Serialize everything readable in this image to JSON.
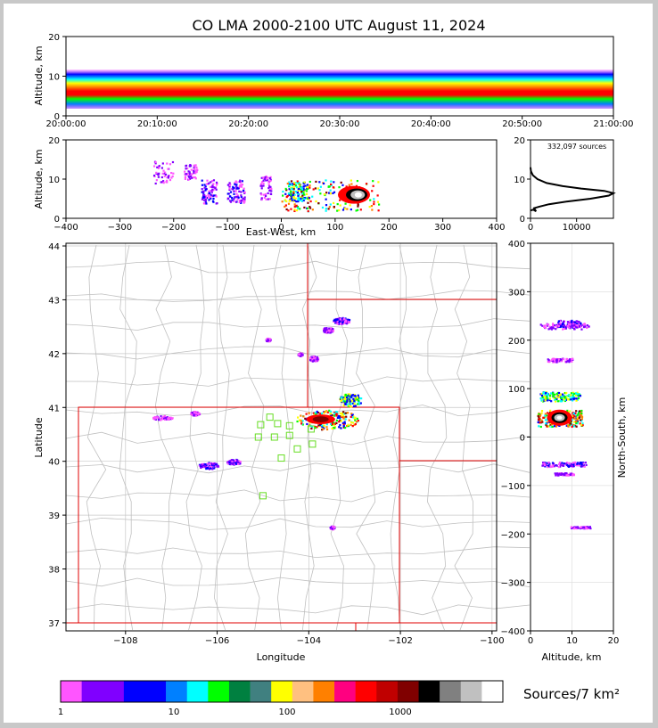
{
  "chart_data": {
    "type": "heatmap",
    "title": "CO LMA 2000-2100 UTC August 11, 2024",
    "source_count": "332,097 sources",
    "panels": {
      "time_altitude": {
        "ylabel": "Altitude, km",
        "ylim": [
          0,
          20
        ],
        "yticks": [
          "0",
          "10",
          "20"
        ],
        "xticks": [
          "20:00:00",
          "20:10:00",
          "20:20:00",
          "20:30:00",
          "20:40:00",
          "20:50:00",
          "21:00:00"
        ],
        "xlim_minutes": [
          0,
          60
        ],
        "band_center_km": 6,
        "band_halfwidth_km": 5
      },
      "ew_altitude": {
        "xlabel": "East-West, km",
        "ylabel": "Altitude, km",
        "xlim": [
          -400,
          400
        ],
        "ylim": [
          0,
          20
        ],
        "xticks": [
          "−400",
          "−300",
          "−200",
          "−100",
          "0",
          "100",
          "200",
          "300",
          "400"
        ],
        "yticks": [
          "0",
          "10",
          "20"
        ],
        "clusters": [
          {
            "x": -220,
            "alt": 12,
            "w": 18,
            "h": 6,
            "level": 1
          },
          {
            "x": -170,
            "alt": 12,
            "w": 12,
            "h": 4,
            "level": 1
          },
          {
            "x": -135,
            "alt": 7,
            "w": 14,
            "h": 6,
            "level": 2
          },
          {
            "x": -85,
            "alt": 7,
            "w": 16,
            "h": 6,
            "level": 2
          },
          {
            "x": -30,
            "alt": 8,
            "w": 10,
            "h": 6,
            "level": 1
          },
          {
            "x": 30,
            "alt": 7,
            "w": 18,
            "h": 5,
            "level": 3
          },
          {
            "x": 90,
            "alt": 6,
            "w": 90,
            "h": 8,
            "level": 5
          }
        ]
      },
      "altitude_histogram": {
        "xticks": [
          "0",
          "10000"
        ],
        "xlim": [
          0,
          18000
        ],
        "yticks": [
          "0",
          "10",
          "20"
        ],
        "ylim": [
          0,
          20
        ],
        "profile": [
          [
            0,
            2
          ],
          [
            600,
            2.2
          ],
          [
            1200,
            1.8
          ],
          [
            800,
            2.6
          ],
          [
            2000,
            3
          ],
          [
            4000,
            3.6
          ],
          [
            8000,
            4.3
          ],
          [
            13000,
            5
          ],
          [
            17000,
            5.8
          ],
          [
            18000,
            6.4
          ],
          [
            16000,
            7
          ],
          [
            11000,
            7.6
          ],
          [
            7000,
            8.2
          ],
          [
            3500,
            9
          ],
          [
            1500,
            10
          ],
          [
            500,
            11
          ],
          [
            100,
            12
          ],
          [
            0,
            13
          ]
        ]
      },
      "map": {
        "xlabel": "Longitude",
        "ylabel": "Latitude",
        "xlim": [
          -109.3,
          -99.9
        ],
        "ylim": [
          36.85,
          44.05
        ],
        "xticks": [
          "−108",
          "−106",
          "−104",
          "−102",
          "−100"
        ],
        "yticks": [
          "37",
          "38",
          "39",
          "40",
          "41",
          "42",
          "43",
          "44"
        ],
        "stations": [
          [
            -104.85,
            40.82
          ],
          [
            -105.05,
            40.68
          ],
          [
            -104.68,
            40.7
          ],
          [
            -104.42,
            40.66
          ],
          [
            -104.75,
            40.45
          ],
          [
            -105.1,
            40.45
          ],
          [
            -104.42,
            40.48
          ],
          [
            -104.25,
            40.23
          ],
          [
            -104.6,
            40.06
          ],
          [
            -103.95,
            40.6
          ],
          [
            -103.92,
            40.32
          ],
          [
            -105.0,
            39.36
          ]
        ],
        "clusters": [
          {
            "lon": -103.1,
            "lat": 41.15,
            "rx": 0.25,
            "ry": 0.12,
            "level": 3
          },
          {
            "lon": -103.6,
            "lat": 40.78,
            "rx": 0.7,
            "ry": 0.18,
            "level": 5
          },
          {
            "lon": -103.3,
            "lat": 42.62,
            "rx": 0.18,
            "ry": 0.06,
            "level": 2
          },
          {
            "lon": -103.6,
            "lat": 42.45,
            "rx": 0.12,
            "ry": 0.05,
            "level": 1
          },
          {
            "lon": -103.9,
            "lat": 41.92,
            "rx": 0.1,
            "ry": 0.05,
            "level": 1
          },
          {
            "lon": -107.2,
            "lat": 40.82,
            "rx": 0.22,
            "ry": 0.04,
            "level": 1
          },
          {
            "lon": -106.5,
            "lat": 40.9,
            "rx": 0.1,
            "ry": 0.04,
            "level": 1
          },
          {
            "lon": -106.2,
            "lat": 39.93,
            "rx": 0.22,
            "ry": 0.06,
            "level": 2
          },
          {
            "lon": -105.65,
            "lat": 40.0,
            "rx": 0.15,
            "ry": 0.05,
            "level": 2
          },
          {
            "lon": -103.5,
            "lat": 38.78,
            "rx": 0.05,
            "ry": 0.03,
            "level": 1
          },
          {
            "lon": -104.2,
            "lat": 42.0,
            "rx": 0.05,
            "ry": 0.03,
            "level": 1
          },
          {
            "lon": -104.9,
            "lat": 42.27,
            "rx": 0.05,
            "ry": 0.03,
            "level": 1
          }
        ]
      },
      "ns_altitude": {
        "xlabel": "Altitude, km",
        "ylabel": "North-South, km",
        "xlim": [
          0,
          20
        ],
        "ylim": [
          -400,
          400
        ],
        "xticks": [
          "0",
          "10",
          "20"
        ],
        "yticks": [
          "−400",
          "−300",
          "−200",
          "−100",
          "0",
          "100",
          "200",
          "300",
          "400"
        ],
        "clusters": [
          {
            "alt": 9,
            "ns": 235,
            "w": 5,
            "h": 12,
            "level": 2
          },
          {
            "alt": 8,
            "ns": 230,
            "w": 10,
            "h": 10,
            "level": 1
          },
          {
            "alt": 7,
            "ns": 160,
            "w": 5,
            "h": 6,
            "level": 1
          },
          {
            "alt": 7,
            "ns": 85,
            "w": 8,
            "h": 16,
            "level": 3
          },
          {
            "alt": 7,
            "ns": 40,
            "w": 9,
            "h": 28,
            "level": 5
          },
          {
            "alt": 8,
            "ns": -55,
            "w": 9,
            "h": 8,
            "level": 2
          },
          {
            "alt": 8,
            "ns": -75,
            "w": 4,
            "h": 4,
            "level": 1
          },
          {
            "alt": 12,
            "ns": -185,
            "w": 4,
            "h": 3,
            "level": 1
          }
        ]
      }
    },
    "colorbar": {
      "label": "Sources/7 km²",
      "ticks": [
        "1",
        "10",
        "100",
        "1000"
      ],
      "colors": [
        "#ff55ff",
        "#8000ff",
        "#8000ff",
        "#0000ff",
        "#0000ff",
        "#0080ff",
        "#00ffff",
        "#00ff00",
        "#008040",
        "#408080",
        "#ffff00",
        "#ffc080",
        "#ff8000",
        "#ff0080",
        "#ff0000",
        "#c00000",
        "#800000",
        "#000000",
        "#808080",
        "#c0c0c0",
        "#ffffff"
      ]
    }
  }
}
